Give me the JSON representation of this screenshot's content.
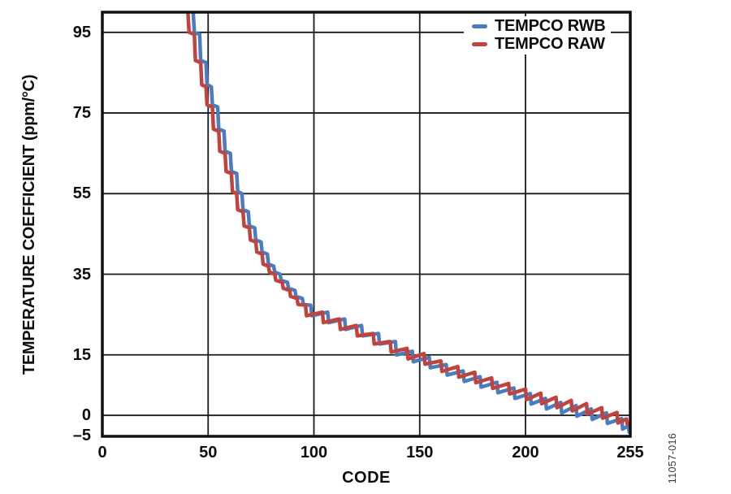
{
  "figure": {
    "id": "11057-016"
  },
  "chart_data": {
    "type": "line",
    "title": "",
    "xlabel": "CODE",
    "ylabel": "TEMPERATURE COEFFICIENT (ppm/°C)",
    "xlim": [
      0,
      255
    ],
    "ylim": [
      -5.2,
      100
    ],
    "grid": true,
    "grid_color": "#1a1a1a",
    "background": "#ffffff",
    "legend_position": "top-right-inside",
    "x_axis": {
      "label": "CODE",
      "gridlines": [
        50,
        100,
        150,
        200
      ],
      "ticks": [
        {
          "v": 0,
          "t": "0"
        },
        {
          "v": 50,
          "t": "50"
        },
        {
          "v": 100,
          "t": "100"
        },
        {
          "v": 150,
          "t": "150"
        },
        {
          "v": 200,
          "t": "200"
        },
        {
          "v": 255,
          "t": "255"
        }
      ]
    },
    "y_axis": {
      "label": "TEMPERATURE COEFFICIENT (ppm/°C)",
      "gridlines": [
        95,
        75,
        55,
        35,
        15,
        0
      ],
      "ticks": [
        {
          "v": 95,
          "t": "95"
        },
        {
          "v": 75,
          "t": "75"
        },
        {
          "v": 55,
          "t": "55"
        },
        {
          "v": 35,
          "t": "35"
        },
        {
          "v": 15,
          "t": "15"
        },
        {
          "v": 0,
          "t": "0"
        },
        {
          "v": -5,
          "t": "–5"
        }
      ]
    },
    "series": [
      {
        "name": "TEMPCO RWB",
        "color": "#4a7cbe",
        "points": [
          [
            42.5,
            104
          ],
          [
            43.5,
            95
          ],
          [
            46,
            94.5
          ],
          [
            46.5,
            88
          ],
          [
            49,
            87.5
          ],
          [
            49.5,
            82
          ],
          [
            51.5,
            81.5
          ],
          [
            52,
            77
          ],
          [
            54.5,
            76.5
          ],
          [
            55,
            71
          ],
          [
            57.5,
            70.5
          ],
          [
            58,
            65.5
          ],
          [
            60.5,
            65
          ],
          [
            61,
            60.5
          ],
          [
            63.5,
            60
          ],
          [
            64,
            55.5
          ],
          [
            66,
            55
          ],
          [
            66.5,
            51
          ],
          [
            69,
            50.5
          ],
          [
            69.5,
            47
          ],
          [
            72,
            46.5
          ],
          [
            72.5,
            43.5
          ],
          [
            75,
            43
          ],
          [
            75.5,
            40.5
          ],
          [
            78,
            40
          ],
          [
            78.5,
            37.5
          ],
          [
            81,
            37
          ],
          [
            81.5,
            35.5
          ],
          [
            84,
            35
          ],
          [
            84.5,
            33.5
          ],
          [
            87.5,
            33
          ],
          [
            88,
            31.5
          ],
          [
            91,
            31
          ],
          [
            91.5,
            29.5
          ],
          [
            94.5,
            29
          ],
          [
            95,
            27.5
          ],
          [
            98.5,
            27.3
          ],
          [
            99,
            24.7
          ],
          [
            106.5,
            25.6
          ],
          [
            107,
            23
          ],
          [
            114.5,
            23.9
          ],
          [
            115,
            21.3
          ],
          [
            122.5,
            22.3
          ],
          [
            123,
            19.7
          ],
          [
            130.5,
            20.3
          ],
          [
            131,
            17.7
          ],
          [
            138.5,
            18.3
          ],
          [
            139,
            15
          ],
          [
            146.5,
            15.9
          ],
          [
            147,
            13.3
          ],
          [
            154.5,
            14.4
          ],
          [
            155,
            11.8
          ],
          [
            162.5,
            12.6
          ],
          [
            163,
            10
          ],
          [
            170.5,
            11
          ],
          [
            171,
            8.4
          ],
          [
            178.5,
            9.6
          ],
          [
            179,
            7
          ],
          [
            186.5,
            8.2
          ],
          [
            187,
            5.6
          ],
          [
            194.5,
            6.8
          ],
          [
            195,
            4.2
          ],
          [
            202.5,
            5.4
          ],
          [
            203,
            2.8
          ],
          [
            210.5,
            4.2
          ],
          [
            211,
            1.6
          ],
          [
            218.5,
            3.2
          ],
          [
            219,
            0.6
          ],
          [
            226.5,
            2.4
          ],
          [
            227,
            -0.2
          ],
          [
            234.5,
            1.6
          ],
          [
            235,
            -1
          ],
          [
            242.5,
            0.6
          ],
          [
            243,
            -2
          ],
          [
            250.5,
            -0.8
          ],
          [
            251,
            -3.4
          ],
          [
            254,
            -2.6
          ],
          [
            254.5,
            -4.2
          ],
          [
            255,
            -4
          ]
        ]
      },
      {
        "name": "TEMPCO RAW",
        "color": "#c2433e",
        "points": [
          [
            40,
            104
          ],
          [
            41,
            95
          ],
          [
            43.5,
            94.5
          ],
          [
            44,
            88
          ],
          [
            46.5,
            87.5
          ],
          [
            47,
            82
          ],
          [
            49,
            81.5
          ],
          [
            49.5,
            77
          ],
          [
            52,
            76.5
          ],
          [
            52.5,
            71
          ],
          [
            55,
            70.5
          ],
          [
            55.5,
            65.5
          ],
          [
            58,
            65
          ],
          [
            58.5,
            60.5
          ],
          [
            61,
            60
          ],
          [
            61.5,
            55.5
          ],
          [
            63.5,
            55
          ],
          [
            64,
            51
          ],
          [
            66.5,
            50.5
          ],
          [
            67,
            47
          ],
          [
            69.5,
            46.5
          ],
          [
            70,
            43.5
          ],
          [
            72.5,
            43
          ],
          [
            73,
            40.5
          ],
          [
            75.5,
            40
          ],
          [
            76,
            37.5
          ],
          [
            78.5,
            37
          ],
          [
            79,
            35.5
          ],
          [
            81.5,
            35
          ],
          [
            82,
            33.5
          ],
          [
            85,
            33
          ],
          [
            85.5,
            31.5
          ],
          [
            88.5,
            31
          ],
          [
            89,
            29.5
          ],
          [
            92,
            29
          ],
          [
            92.5,
            27.5
          ],
          [
            96,
            27.3
          ],
          [
            96.5,
            24.7
          ],
          [
            104,
            25.6
          ],
          [
            104.5,
            23
          ],
          [
            112,
            23.9
          ],
          [
            112.5,
            21.3
          ],
          [
            120,
            22.3
          ],
          [
            120.5,
            19.7
          ],
          [
            128,
            20.3
          ],
          [
            128.5,
            17.7
          ],
          [
            136,
            18.3
          ],
          [
            136.5,
            15.7
          ],
          [
            144,
            16.6
          ],
          [
            144.5,
            14
          ],
          [
            152,
            15.3
          ],
          [
            152.5,
            12.7
          ],
          [
            160,
            13.5
          ],
          [
            160.5,
            10.9
          ],
          [
            168,
            12.1
          ],
          [
            168.5,
            9.5
          ],
          [
            176,
            10.7
          ],
          [
            176.5,
            8.1
          ],
          [
            184,
            9.3
          ],
          [
            184.5,
            6.7
          ],
          [
            192,
            7.9
          ],
          [
            192.5,
            5.3
          ],
          [
            200,
            6.5
          ],
          [
            200.5,
            3.9
          ],
          [
            208,
            5.5
          ],
          [
            208.5,
            2.9
          ],
          [
            216,
            4.5
          ],
          [
            216.5,
            1.9
          ],
          [
            224,
            3.7
          ],
          [
            224.5,
            1.1
          ],
          [
            232,
            2.9
          ],
          [
            232.5,
            0.3
          ],
          [
            240,
            1.9
          ],
          [
            240.5,
            -0.7
          ],
          [
            248,
            0.7
          ],
          [
            248.5,
            -1.9
          ],
          [
            253,
            -0.9
          ],
          [
            253.5,
            -2.3
          ],
          [
            255,
            -2
          ]
        ]
      }
    ]
  }
}
